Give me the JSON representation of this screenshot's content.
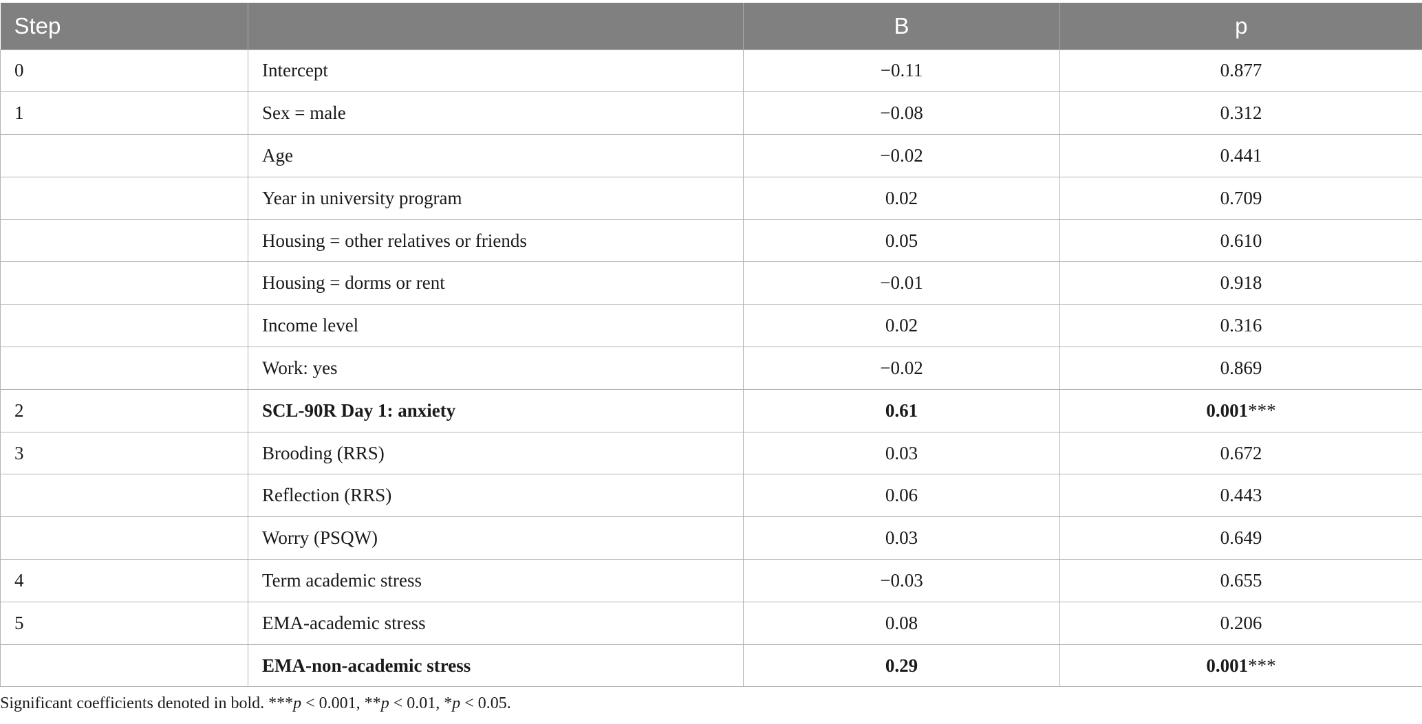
{
  "table": {
    "headers": {
      "step": "Step",
      "variable": "",
      "b": "B",
      "p": "p"
    },
    "rows": [
      {
        "step": "0",
        "variable": "Intercept",
        "b": "−0.11",
        "p": "0.877",
        "stars": "",
        "bold": false
      },
      {
        "step": "1",
        "variable": "Sex = male",
        "b": "−0.08",
        "p": "0.312",
        "stars": "",
        "bold": false
      },
      {
        "step": "",
        "variable": "Age",
        "b": "−0.02",
        "p": "0.441",
        "stars": "",
        "bold": false
      },
      {
        "step": "",
        "variable": "Year in university program",
        "b": "0.02",
        "p": "0.709",
        "stars": "",
        "bold": false
      },
      {
        "step": "",
        "variable": "Housing = other relatives or friends",
        "b": "0.05",
        "p": "0.610",
        "stars": "",
        "bold": false
      },
      {
        "step": "",
        "variable": "Housing = dorms or rent",
        "b": "−0.01",
        "p": "0.918",
        "stars": "",
        "bold": false
      },
      {
        "step": "",
        "variable": "Income level",
        "b": "0.02",
        "p": "0.316",
        "stars": "",
        "bold": false
      },
      {
        "step": "",
        "variable": "Work: yes",
        "b": "−0.02",
        "p": "0.869",
        "stars": "",
        "bold": false
      },
      {
        "step": "2",
        "variable": "SCL-90R Day 1: anxiety",
        "b": "0.61",
        "p": "0.001",
        "stars": "***",
        "bold": true
      },
      {
        "step": "3",
        "variable": "Brooding (RRS)",
        "b": "0.03",
        "p": "0.672",
        "stars": "",
        "bold": false
      },
      {
        "step": "",
        "variable": "Reflection (RRS)",
        "b": "0.06",
        "p": "0.443",
        "stars": "",
        "bold": false
      },
      {
        "step": "",
        "variable": "Worry (PSQW)",
        "b": "0.03",
        "p": "0.649",
        "stars": "",
        "bold": false
      },
      {
        "step": "4",
        "variable": "Term academic stress",
        "b": "−0.03",
        "p": "0.655",
        "stars": "",
        "bold": false
      },
      {
        "step": "5",
        "variable": "EMA-academic stress",
        "b": "0.08",
        "p": "0.206",
        "stars": "",
        "bold": false
      },
      {
        "step": "",
        "variable": "EMA-non-academic stress",
        "b": "0.29",
        "p": "0.001",
        "stars": "***",
        "bold": true
      }
    ]
  },
  "footnote": {
    "lead": "Significant coefficients denoted in bold. ***",
    "p1": "p",
    "t1": " < 0.001, **",
    "p2": "p",
    "t2": " < 0.01, *",
    "p3": "p",
    "t3": " < 0.05."
  }
}
